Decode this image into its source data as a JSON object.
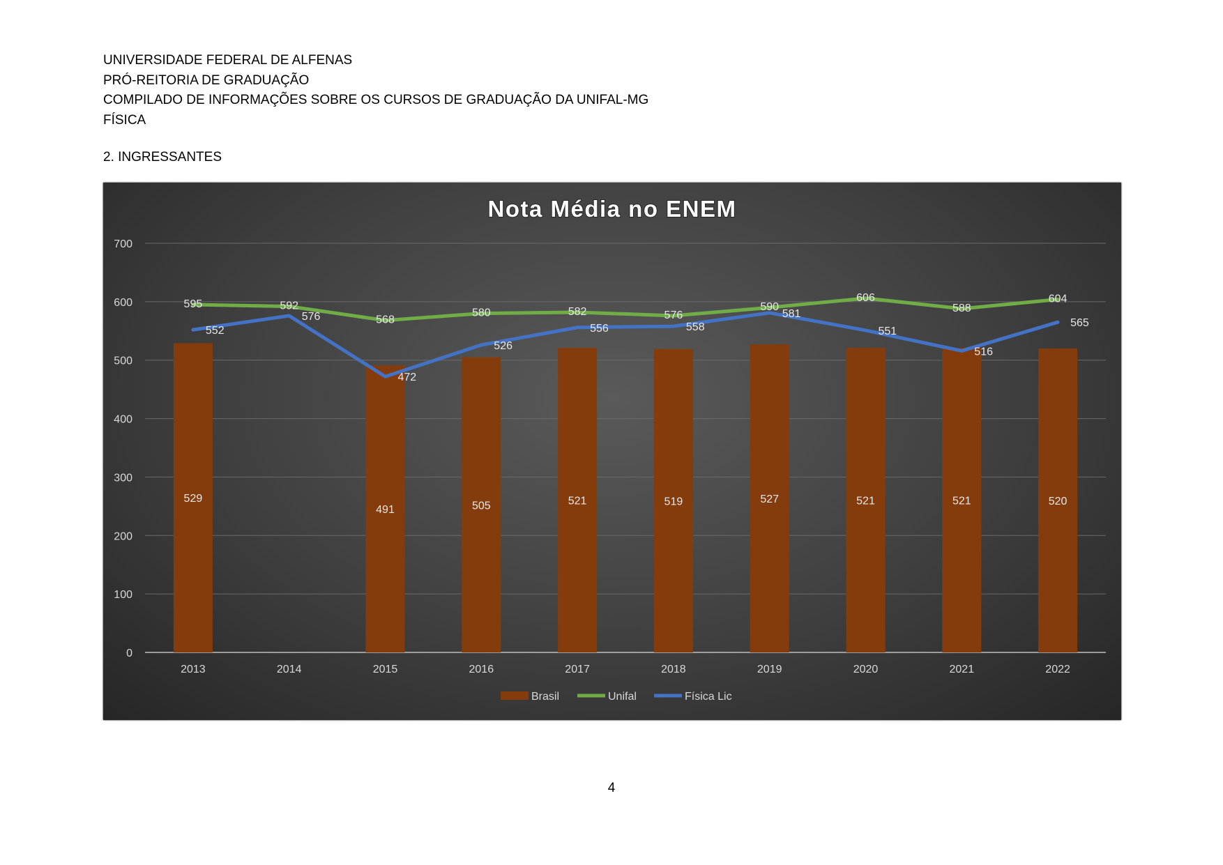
{
  "header": {
    "line1": "UNIVERSIDADE FEDERAL DE ALFENAS",
    "line2": "PRÓ-REITORIA DE GRADUAÇÃO",
    "line3": "COMPILADO DE INFORMAÇÕES SOBRE OS CURSOS DE GRADUAÇÃO DA UNIFAL-MG",
    "line4": "FÍSICA"
  },
  "section_title": "2. INGRESSANTES",
  "page_number": "4",
  "chart_data": {
    "type": "bar",
    "title": "Nota Média no ENEM",
    "categories": [
      "2013",
      "2014",
      "2015",
      "2016",
      "2017",
      "2018",
      "2019",
      "2020",
      "2021",
      "2022"
    ],
    "ylim": [
      0,
      700
    ],
    "yticks": [
      0,
      100,
      200,
      300,
      400,
      500,
      600,
      700
    ],
    "grid": true,
    "legend_position": "bottom",
    "series": [
      {
        "name": "Brasil",
        "type": "bar",
        "color": "#843c0c",
        "values": [
          529,
          null,
          491,
          505,
          521,
          519,
          527,
          521,
          521,
          520
        ]
      },
      {
        "name": "Unifal",
        "type": "line",
        "color": "#70ad47",
        "values": [
          595,
          592,
          568,
          580,
          582,
          576,
          590,
          606,
          588,
          604
        ]
      },
      {
        "name": "Física Lic",
        "type": "line",
        "color": "#4472c4",
        "values": [
          552,
          576,
          472,
          526,
          556,
          558,
          581,
          551,
          516,
          565
        ]
      }
    ]
  }
}
